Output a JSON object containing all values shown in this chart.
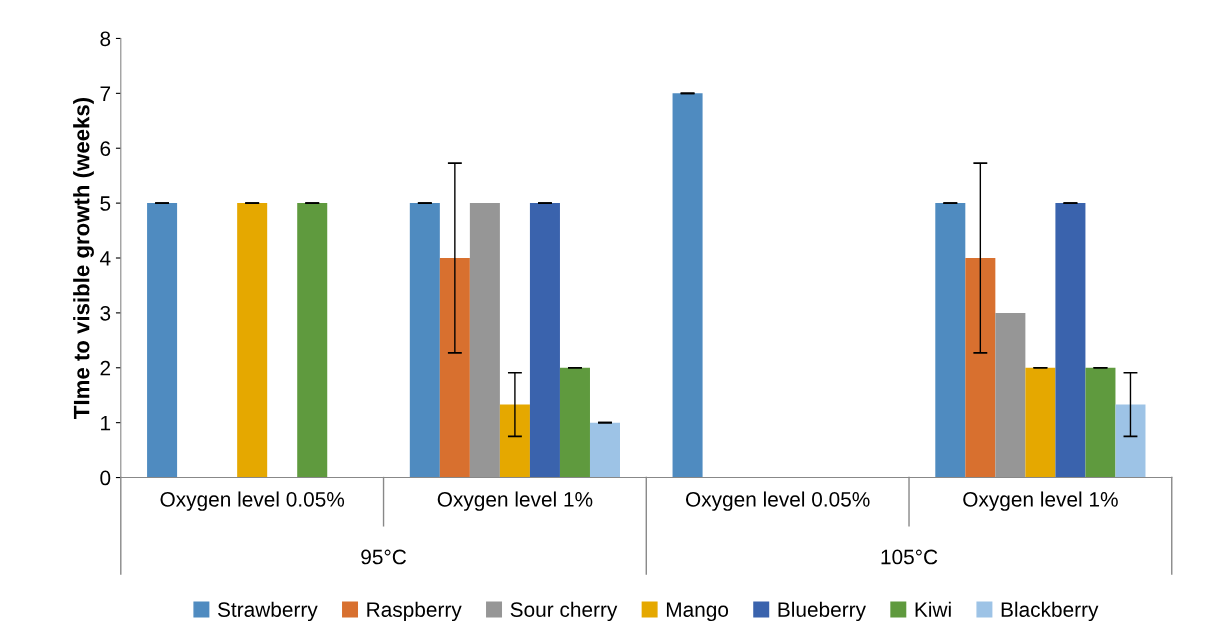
{
  "chart_data": {
    "type": "bar",
    "ylabel": "TIme to visible growth (weeks)",
    "categories": [
      "Oxygen level 0.05%",
      "Oxygen level 1%",
      "Oxygen level 0.05%",
      "Oxygen level 1%"
    ],
    "annotations": [
      "95°C",
      "105°C"
    ],
    "series": [
      {
        "name": "Strawberry",
        "color": "#4f8bc0",
        "values": [
          5,
          5,
          7,
          5
        ],
        "errors": [
          0,
          0,
          0,
          0
        ]
      },
      {
        "name": "Raspberry",
        "color": "#d8702f",
        "values": [
          null,
          4,
          null,
          4
        ],
        "errors": [
          null,
          1.73,
          null,
          1.73
        ]
      },
      {
        "name": "Sour cherry",
        "color": "#969696",
        "values": [
          null,
          5,
          null,
          3
        ],
        "errors": [
          null,
          null,
          null,
          null
        ]
      },
      {
        "name": "Mango",
        "color": "#e5a800",
        "values": [
          5,
          1.33,
          null,
          2
        ],
        "errors": [
          0,
          0.58,
          null,
          0
        ]
      },
      {
        "name": "Blueberry",
        "color": "#3a63ad",
        "values": [
          null,
          5,
          null,
          5
        ],
        "errors": [
          null,
          0,
          null,
          0
        ]
      },
      {
        "name": "Kiwi",
        "color": "#5f9a3e",
        "values": [
          5,
          2,
          null,
          2
        ],
        "errors": [
          0,
          0,
          null,
          0
        ]
      },
      {
        "name": "Blackberry",
        "color": "#9dc3e6",
        "values": [
          null,
          1,
          null,
          1.33
        ],
        "errors": [
          null,
          0,
          null,
          0.58
        ]
      }
    ],
    "ylim": [
      0,
      8
    ],
    "yticks": [
      0,
      1,
      2,
      3,
      4,
      5,
      6,
      7,
      8
    ],
    "grid": false,
    "legend": "bottom"
  }
}
